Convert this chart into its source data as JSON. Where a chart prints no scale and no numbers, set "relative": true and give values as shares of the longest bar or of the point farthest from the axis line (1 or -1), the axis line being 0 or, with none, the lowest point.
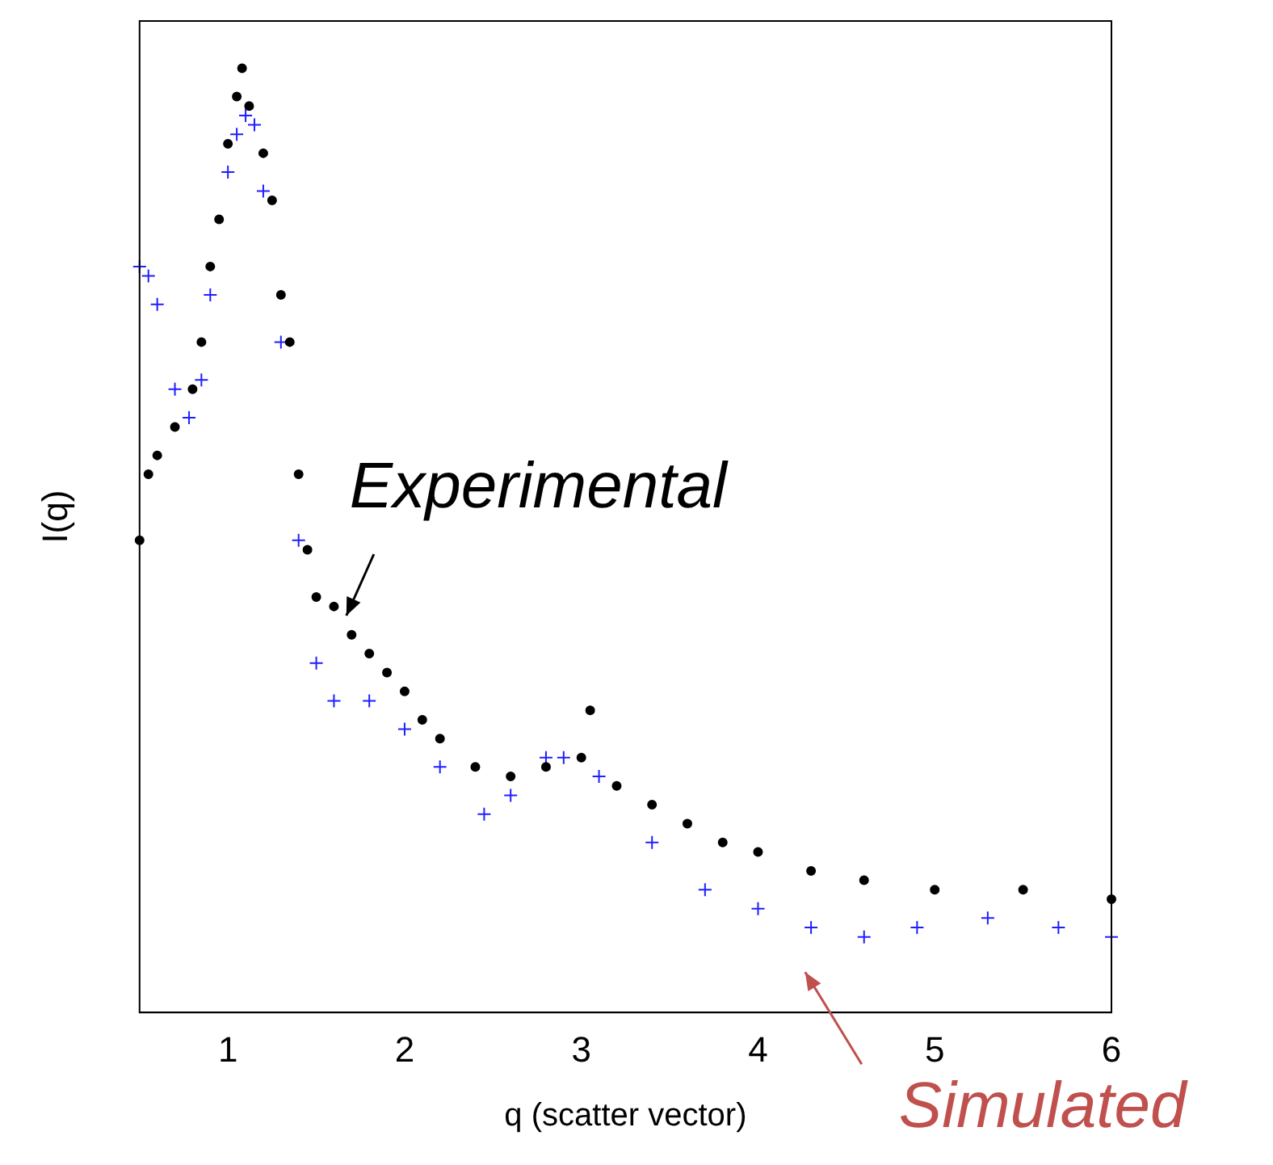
{
  "chart_data": {
    "type": "scatter",
    "relative": true,
    "xlabel": "q (scatter vector)",
    "ylabel": "I(q)",
    "xlim": [
      0.5,
      6
    ],
    "xticks": [
      1,
      2,
      3,
      4,
      5,
      6
    ],
    "grid": false,
    "legend": false,
    "series": [
      {
        "name": "Experimental",
        "color": "#000000",
        "marker": "circle",
        "x": [
          0.5,
          0.55,
          0.6,
          0.7,
          0.8,
          0.85,
          0.9,
          0.95,
          1.0,
          1.05,
          1.08,
          1.12,
          1.2,
          1.25,
          1.3,
          1.35,
          1.4,
          1.45,
          1.5,
          1.6,
          1.7,
          1.8,
          1.9,
          2.0,
          2.1,
          2.2,
          2.4,
          2.6,
          2.8,
          3.0,
          3.05,
          3.2,
          3.4,
          3.6,
          3.8,
          4.0,
          4.3,
          4.6,
          5.0,
          5.5,
          6.0
        ],
        "values": [
          0.5,
          0.57,
          0.59,
          0.62,
          0.66,
          0.71,
          0.79,
          0.84,
          0.92,
          0.97,
          1.0,
          0.96,
          0.91,
          0.86,
          0.76,
          0.71,
          0.57,
          0.49,
          0.44,
          0.43,
          0.4,
          0.38,
          0.36,
          0.34,
          0.31,
          0.29,
          0.26,
          0.25,
          0.26,
          0.27,
          0.32,
          0.24,
          0.22,
          0.2,
          0.18,
          0.17,
          0.15,
          0.14,
          0.13,
          0.13,
          0.12
        ]
      },
      {
        "name": "Simulated",
        "color": "#1f1fff",
        "marker": "cross",
        "x": [
          0.5,
          0.55,
          0.6,
          0.7,
          0.78,
          0.85,
          0.9,
          1.0,
          1.05,
          1.1,
          1.15,
          1.2,
          1.3,
          1.4,
          1.5,
          1.6,
          1.8,
          2.0,
          2.2,
          2.45,
          2.6,
          2.8,
          2.9,
          3.1,
          3.4,
          3.7,
          4.0,
          4.3,
          4.6,
          4.9,
          5.3,
          5.7,
          6.0
        ],
        "values": [
          0.79,
          0.78,
          0.75,
          0.66,
          0.63,
          0.67,
          0.76,
          0.89,
          0.93,
          0.95,
          0.94,
          0.87,
          0.71,
          0.5,
          0.37,
          0.33,
          0.33,
          0.3,
          0.26,
          0.21,
          0.23,
          0.27,
          0.27,
          0.25,
          0.18,
          0.13,
          0.11,
          0.09,
          0.08,
          0.09,
          0.1,
          0.09,
          0.08
        ]
      }
    ]
  }
}
